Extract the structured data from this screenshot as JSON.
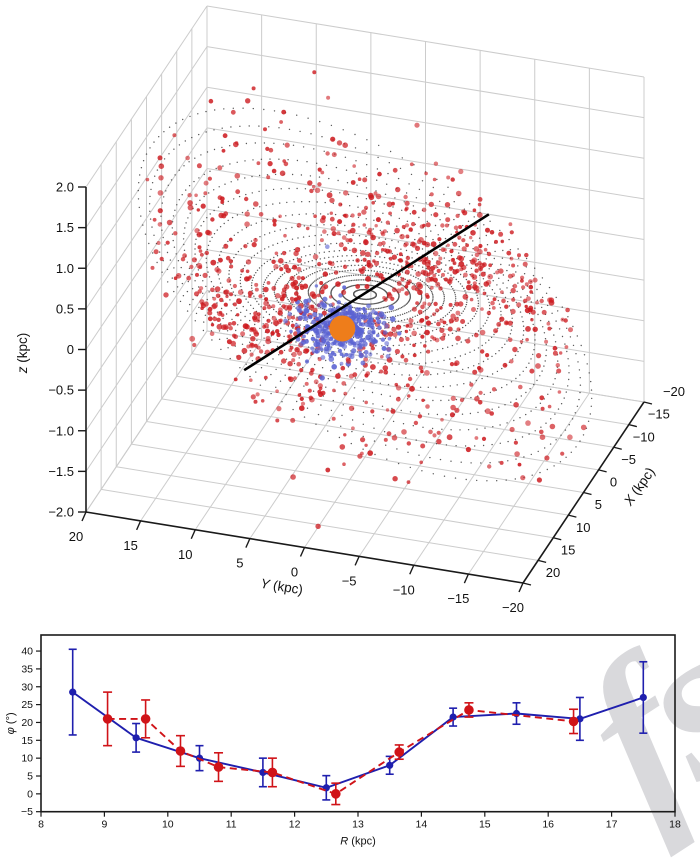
{
  "figure": {
    "background": "#ffffff",
    "watermark": {
      "text": "fs",
      "color": "#d9d9dc",
      "rotation_deg": -33
    }
  },
  "chart_data": [
    {
      "type": "scatter",
      "subtype": "3d-galactic-warp",
      "title": "",
      "axes": {
        "x": {
          "label_var": "X",
          "label_rest": " (kpc)",
          "range": [
            -20,
            20
          ],
          "ticks": [
            -20,
            -15,
            -10,
            -5,
            0,
            5,
            10,
            15,
            20
          ],
          "tick_labels": [
            "−20",
            "−15",
            "−10",
            "−5",
            "0",
            "5",
            "10",
            "15",
            "20"
          ]
        },
        "y": {
          "label_var": "Y",
          "label_rest": " (kpc)",
          "range": [
            20,
            -20
          ],
          "ticks": [
            20,
            15,
            10,
            5,
            0,
            -5,
            -10,
            -15,
            -20
          ],
          "tick_labels": [
            "20",
            "15",
            "10",
            "5",
            "0",
            "−5",
            "−10",
            "−15",
            "−20"
          ]
        },
        "z": {
          "label_var": "z",
          "label_rest": " (kpc)",
          "range": [
            -2,
            2
          ],
          "ticks": [
            2,
            1.5,
            1,
            0.5,
            0,
            -0.5,
            -1,
            -1.5,
            -2
          ],
          "tick_labels": [
            "2.0",
            "1.5",
            "1.0",
            "0.5",
            "0",
            "−0.5",
            "−1.0",
            "−1.5",
            "−2.0"
          ]
        }
      },
      "grid_color": "#cccccc",
      "spine_color": "#1a1a1a",
      "disk_model": {
        "description": "dotted warped-disk model rings",
        "r_min_kpc": 1,
        "r_max_kpc": 20,
        "r_step_kpc": 1,
        "theta_step_deg": 3,
        "dot_color": "#3c3c3c"
      },
      "warp_model": {
        "amplitude_kpc": 1.35,
        "onset_radius_kpc": 8.5,
        "exponent": 1.6,
        "line_of_nodes_deg": 17
      },
      "line_of_nodes": {
        "color": "#000000",
        "from_xy_kpc": [
          19,
          5.8
        ],
        "to_xy_kpc": [
          -20,
          -5.8
        ]
      },
      "sun_marker": {
        "x_kpc": 7.5,
        "y_kpc": 0,
        "z_kpc": 0,
        "color": "#ee7d1b",
        "radius_px": 13
      },
      "cepheid_scatter": {
        "seed": 42,
        "n_band_points": 950,
        "n_sun_cluster_points": 300,
        "band_fraction": 0.58,
        "band_sigma_deg": 36,
        "z_noise_sigma_kpc": 0.15,
        "outlier_fraction": 0.05,
        "blue_color": "#5a62d2",
        "red_color": "#cd1a1f",
        "blue_if_distance_from_sun_below_kpc": 3.4
      }
    },
    {
      "type": "line",
      "title": "",
      "xlabel_var": "R",
      "xlabel_rest": " (kpc)",
      "ylabel_var": "φ",
      "ylabel_rest": " (°)",
      "xlim": [
        8,
        18
      ],
      "ylim": [
        -5,
        44.5
      ],
      "xticks": [
        8,
        9,
        10,
        11,
        12,
        13,
        14,
        15,
        16,
        17,
        18
      ],
      "xtick_labels": [
        "8",
        "9",
        "10",
        "11",
        "12",
        "13",
        "14",
        "15",
        "16",
        "17",
        "18"
      ],
      "yticks": [
        40,
        35,
        30,
        25,
        20,
        15,
        10,
        5,
        0,
        -5
      ],
      "ytick_labels": [
        "40",
        "35",
        "30",
        "25",
        "20",
        "15",
        "10",
        "5",
        "0",
        "−5"
      ],
      "frame_color": "#1a1a1a",
      "legend": "none",
      "series": [
        {
          "name": "cepheid-warp-angle-blue",
          "color": "#1f1fae",
          "line_style": "solid",
          "marker": "circle",
          "marker_r": 3.6,
          "cap_halfwidth": 4,
          "x": [
            8.5,
            9.5,
            10.5,
            11.5,
            12.5,
            13.5,
            14.5,
            15.5,
            16.5,
            17.5
          ],
          "y": [
            28.5,
            15.7,
            10.0,
            6.0,
            1.7,
            8.0,
            21.5,
            22.5,
            21.0,
            27.0
          ],
          "yerr": [
            12.0,
            4.0,
            3.5,
            4.0,
            3.4,
            2.5,
            2.5,
            3.0,
            6.0,
            10.0
          ]
        },
        {
          "name": "model-warp-angle-red",
          "color": "#d01318",
          "line_style": "dashed",
          "marker": "circle",
          "marker_r": 4.8,
          "cap_halfwidth": 4.5,
          "x": [
            9.05,
            9.65,
            10.2,
            10.8,
            11.65,
            12.65,
            13.65,
            14.75,
            16.4
          ],
          "y": [
            21.0,
            21.0,
            12.0,
            7.5,
            6.0,
            0.0,
            11.7,
            23.5,
            20.3
          ],
          "yerr": [
            7.5,
            5.3,
            4.3,
            4.0,
            4.0,
            3.0,
            2.0,
            2.0,
            3.4
          ]
        }
      ]
    }
  ]
}
